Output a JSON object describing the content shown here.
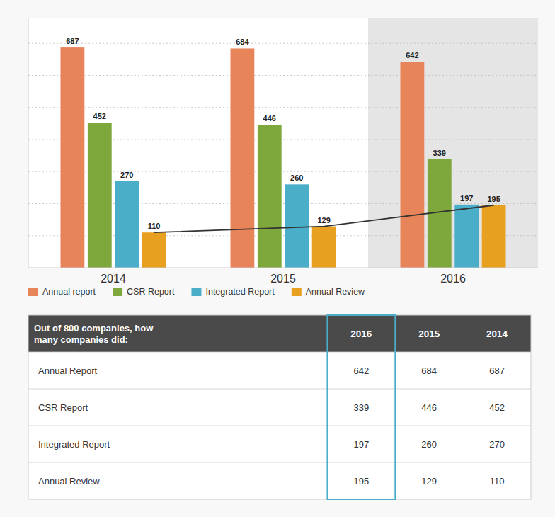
{
  "chart_data": [
    {
      "type": "bar",
      "categories": [
        "2014",
        "2015",
        "2016"
      ],
      "series": [
        {
          "name": "Annual report",
          "color": "#E8845A",
          "values": [
            687,
            684,
            642
          ]
        },
        {
          "name": "CSR Report",
          "color": "#7EA83C",
          "values": [
            452,
            446,
            339
          ]
        },
        {
          "name": "Integrated Report",
          "color": "#4BAEC8",
          "values": [
            270,
            260,
            197
          ]
        },
        {
          "name": "Annual Review",
          "color": "#E8A020",
          "values": [
            110,
            129,
            195
          ],
          "line_style": "solid"
        }
      ],
      "ylim": [
        0,
        780
      ],
      "yticks": [
        100,
        200,
        300,
        400,
        500,
        600,
        700
      ],
      "grid": true,
      "tick_labels": "x",
      "data_labels": true,
      "legend": "bottom"
    },
    {
      "type": "table",
      "title": "Out of 800 companies, how\nmany companies did:",
      "categories": [
        "Annual Report",
        "CSR Report",
        "Integrated Report",
        "Annual Review"
      ],
      "series": [
        {
          "name": "2016",
          "color": "#4BAEC8",
          "values": [
            642,
            339,
            197,
            195
          ]
        },
        {
          "name": "2015",
          "values": [
            684,
            446,
            260,
            129
          ]
        },
        {
          "name": "2014",
          "values": [
            687,
            452,
            270,
            110
          ]
        }
      ]
    }
  ]
}
